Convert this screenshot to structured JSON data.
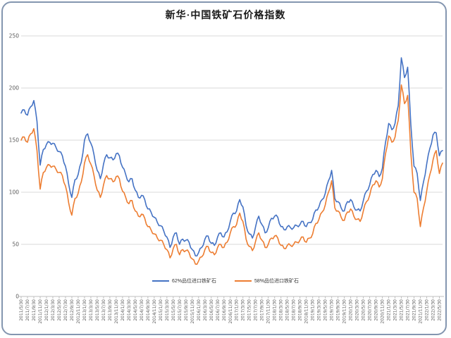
{
  "frame": {
    "background": "#ffffff",
    "border_color": "#8496b0"
  },
  "chart_data": {
    "type": "line",
    "title": "新华·中国铁矿石价格指数",
    "xlabel": "",
    "ylabel": "",
    "ylim": [
      0,
      250
    ],
    "y_ticks": [
      0,
      50,
      100,
      150,
      200,
      250
    ],
    "grid": "horizontal",
    "gridline_color": "#d9d9d9",
    "axis_color": "#bfbfbf",
    "tick_label_color": "#595959",
    "legend_position": "bottom-center",
    "x_interval": "monthly",
    "x_start": "2011/5/30",
    "x_end": "2022/6/30",
    "x_tick_labels": [
      "2011/5/30",
      "2011/7/30",
      "2011/9/30",
      "2011/11/30",
      "2012/1/30",
      "2012/3/30",
      "2012/5/30",
      "2012/7/30",
      "2012/9/30",
      "2012/11/30",
      "2013/1/30",
      "2013/3/30",
      "2013/5/30",
      "2013/7/30",
      "2013/9/30",
      "2013/11/30",
      "2014/1/30",
      "2014/3/30",
      "2014/5/30",
      "2014/7/30",
      "2014/9/30",
      "2014/11/30",
      "2015/1/30",
      "2015/3/30",
      "2015/5/30",
      "2015/7/30",
      "2015/9/30",
      "2015/11/30",
      "2016/1/30",
      "2016/3/30",
      "2016/5/30",
      "2016/7/30",
      "2016/9/30",
      "2016/11/30",
      "2017/1/30",
      "2017/3/30",
      "2017/5/30",
      "2017/7/30",
      "2017/9/30",
      "2017/11/30",
      "2018/1/30",
      "2018/3/30",
      "2018/5/30",
      "2018/7/30",
      "2018/9/30",
      "2018/11/30",
      "2019/1/30",
      "2019/3/30",
      "2019/5/30",
      "2019/7/30",
      "2019/9/30",
      "2019/11/30",
      "2020/1/30",
      "2020/3/30",
      "2020/5/30",
      "2020/7/30",
      "2020/9/30",
      "2020/11/30",
      "2021/1/30",
      "2021/3/30",
      "2021/5/30",
      "2021/7/30",
      "2021/9/30",
      "2021/11/30",
      "2022/1/30",
      "2022/3/30",
      "2022/5/30"
    ],
    "series": [
      {
        "name": "62%品位进口铁矿石",
        "color": "#4472C4",
        "values": [
          176,
          179,
          174,
          182,
          188,
          168,
          126,
          141,
          146,
          148,
          147,
          143,
          139,
          135,
          125,
          108,
          95,
          112,
          117,
          129,
          150,
          156,
          147,
          136,
          121,
          113,
          127,
          136,
          133,
          131,
          137,
          135,
          124,
          117,
          110,
          113,
          102,
          95,
          97,
          93,
          84,
          81,
          76,
          71,
          68,
          63,
          57,
          47,
          57,
          61,
          50,
          55,
          54,
          52,
          45,
          39,
          42,
          47,
          55,
          58,
          51,
          49,
          57,
          61,
          57,
          62,
          72,
          80,
          82,
          93,
          86,
          68,
          60,
          56,
          67,
          77,
          69,
          61,
          66,
          75,
          77,
          76,
          67,
          64,
          67,
          66,
          66,
          68,
          69,
          72,
          67,
          71,
          74,
          83,
          86,
          93,
          99,
          111,
          121,
          94,
          91,
          85,
          82,
          91,
          93,
          86,
          83,
          82,
          92,
          101,
          107,
          117,
          121,
          115,
          123,
          148,
          166,
          160,
          166,
          183,
          229,
          210,
          220,
          165,
          125,
          118,
          92,
          110,
          127,
          142,
          155,
          157,
          135,
          140
        ]
      },
      {
        "name": "58%品位进口铁矿石",
        "color": "#ED7D31",
        "values": [
          150,
          153,
          148,
          156,
          161,
          140,
          103,
          119,
          124,
          126,
          125,
          122,
          119,
          116,
          106,
          90,
          78,
          94,
          99,
          110,
          128,
          136,
          127,
          116,
          102,
          95,
          107,
          116,
          113,
          110,
          115,
          113,
          101,
          95,
          89,
          92,
          82,
          77,
          79,
          75,
          67,
          64,
          60,
          56,
          54,
          50,
          45,
          37,
          46,
          50,
          40,
          45,
          44,
          42,
          36,
          31,
          34,
          38,
          45,
          48,
          42,
          40,
          47,
          50,
          47,
          52,
          61,
          67,
          69,
          80,
          72,
          55,
          48,
          44,
          53,
          61,
          54,
          47,
          50,
          56,
          58,
          56,
          49,
          46,
          49,
          49,
          50,
          52,
          54,
          57,
          52,
          56,
          60,
          70,
          74,
          81,
          88,
          100,
          111,
          85,
          82,
          76,
          73,
          81,
          84,
          77,
          74,
          72,
          82,
          91,
          97,
          107,
          111,
          105,
          113,
          137,
          154,
          148,
          153,
          169,
          203,
          185,
          193,
          138,
          100,
          94,
          67,
          85,
          101,
          117,
          131,
          140,
          118,
          128
        ]
      }
    ]
  }
}
